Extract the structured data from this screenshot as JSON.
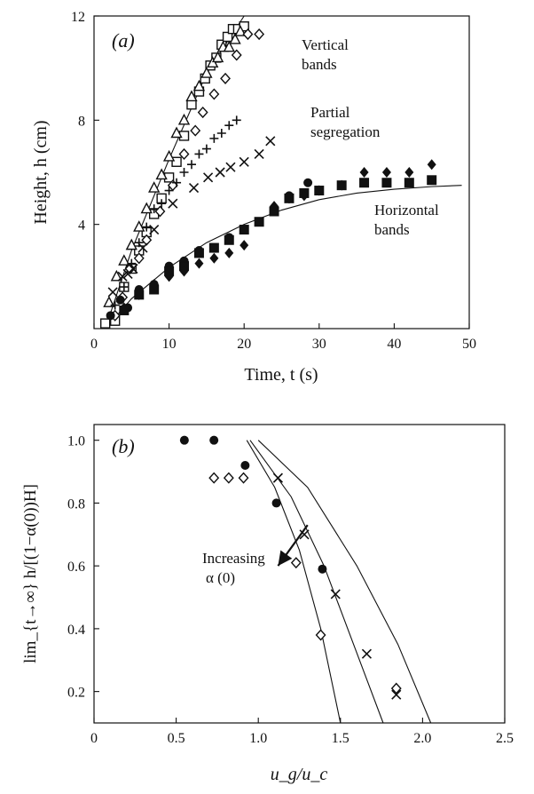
{
  "chart_data": [
    {
      "type": "scatter",
      "panel_label": "(a)",
      "xlabel": "Time, t (s)",
      "ylabel": "Height, h (cm)",
      "xlim": [
        0,
        50
      ],
      "ylim": [
        0,
        12
      ],
      "xticks": [
        0,
        10,
        20,
        30,
        40,
        50
      ],
      "yticks": [
        4,
        8,
        12
      ],
      "grid": false,
      "annotations": [
        {
          "lines": [
            "Vertical",
            "bands"
          ]
        },
        {
          "lines": [
            "Partial",
            "segregation"
          ]
        },
        {
          "lines": [
            "Horizontal",
            "bands"
          ]
        }
      ],
      "series": [
        {
          "marker": "open-square",
          "x": [
            1.5,
            2.8,
            4,
            5,
            6,
            7,
            8,
            9,
            10,
            11,
            12,
            13,
            14,
            14.8,
            15.5,
            16.3,
            17,
            17.8,
            18.5,
            19.2,
            20
          ],
          "y": [
            0.2,
            0.3,
            1.6,
            2.3,
            3,
            3.7,
            4.4,
            5,
            5.8,
            6.4,
            7.4,
            8.6,
            9.1,
            9.6,
            10.1,
            10.4,
            10.9,
            11.2,
            11.5,
            11.5,
            11.6
          ]
        },
        {
          "marker": "open-triangle",
          "x": [
            2,
            3,
            4,
            5,
            6,
            7,
            8,
            9,
            10,
            11,
            12,
            13,
            14,
            15,
            15.8,
            16.5,
            17.2,
            18,
            18.8,
            19.5
          ],
          "y": [
            1,
            2,
            2.6,
            3.2,
            3.9,
            4.6,
            5.4,
            5.9,
            6.6,
            7.5,
            8,
            8.9,
            9.3,
            9.8,
            10.2,
            10.4,
            10.8,
            10.8,
            11.1,
            11.4
          ]
        },
        {
          "marker": "open-diamond",
          "x": [
            2.8,
            3.8,
            4.8,
            6,
            7,
            8.8,
            10.5,
            12,
            13.5,
            14.5,
            16,
            17.5,
            19,
            20.5,
            22
          ],
          "y": [
            0.5,
            1.2,
            2.3,
            2.7,
            3.4,
            4.5,
            5.5,
            6.7,
            7.6,
            8.3,
            9,
            9.6,
            10.5,
            11.3,
            11.3
          ]
        },
        {
          "marker": "plus",
          "x": [
            2.8,
            4,
            5,
            6,
            7,
            8,
            9,
            10,
            11,
            12,
            13,
            14,
            15,
            16,
            17,
            18,
            19
          ],
          "y": [
            0.9,
            1.6,
            2.5,
            3.3,
            3.9,
            4.6,
            4.8,
            5.3,
            5.6,
            6,
            6.3,
            6.7,
            6.9,
            7.3,
            7.5,
            7.8,
            8
          ]
        },
        {
          "marker": "cross",
          "x": [
            2.5,
            3.8,
            4.5,
            5.2,
            6.5,
            8,
            10.5,
            13.3,
            15.2,
            16.8,
            18.2,
            20,
            22,
            23.5
          ],
          "y": [
            1.4,
            2,
            2.1,
            2.3,
            3.1,
            3.8,
            4.8,
            5.4,
            5.8,
            6,
            6.2,
            6.4,
            6.7,
            7.2
          ]
        },
        {
          "marker": "filled-circle",
          "x": [
            2.2,
            3.5,
            4.5,
            6,
            8,
            10,
            12,
            14,
            16,
            18,
            20,
            22,
            24,
            26,
            28.5
          ],
          "y": [
            0.5,
            1.1,
            0.8,
            1.5,
            1.7,
            2.4,
            2.6,
            3,
            3.1,
            3.5,
            3.8,
            4.1,
            4.6,
            5.1,
            5.6
          ]
        },
        {
          "marker": "filled-square",
          "x": [
            4,
            6,
            8,
            10,
            12,
            14,
            16,
            18,
            20,
            22,
            24,
            26,
            28,
            30,
            33,
            36,
            39,
            42,
            45
          ],
          "y": [
            0.7,
            1.3,
            1.5,
            2.2,
            2.4,
            2.9,
            3.1,
            3.4,
            3.8,
            4.1,
            4.5,
            5,
            5.2,
            5.3,
            5.5,
            5.6,
            5.6,
            5.6,
            5.7
          ]
        },
        {
          "marker": "filled-diamond",
          "x": [
            4,
            6,
            8,
            10,
            12,
            14,
            16,
            18,
            20,
            24,
            26,
            28,
            30,
            33,
            36,
            39,
            42,
            45
          ],
          "y": [
            0.8,
            1.3,
            1.7,
            2,
            2.2,
            2.5,
            2.7,
            2.9,
            3.2,
            4.7,
            5,
            5.1,
            5.3,
            5.5,
            6,
            6,
            6,
            6.3
          ]
        }
      ],
      "curves": [
        {
          "x": [
            1.5,
            5,
            10,
            15,
            20,
            22
          ],
          "y": [
            0,
            3,
            6.5,
            9.8,
            12.5,
            13.4
          ]
        },
        {
          "x": [
            1.5,
            5,
            10,
            15,
            20,
            25,
            30,
            35,
            40,
            45,
            49
          ],
          "y": [
            0,
            1.15,
            2.35,
            3.3,
            4,
            4.55,
            4.95,
            5.2,
            5.35,
            5.45,
            5.5
          ]
        }
      ]
    },
    {
      "type": "scatter",
      "panel_label": "(b)",
      "xlabel": "u_g/u_c",
      "ylabel": "lim_{t→∞} h/[(1−α(0))H]",
      "xlim": [
        0,
        2.5
      ],
      "ylim": [
        0.1,
        1.05
      ],
      "xticks": [
        0,
        0.5,
        1.0,
        1.5,
        2.0,
        2.5
      ],
      "xtick_labels": [
        "0",
        "0.5",
        "1.0",
        "1.5",
        "2.0",
        "2.5"
      ],
      "yticks": [
        0.2,
        0.4,
        0.6,
        0.8,
        1.0
      ],
      "ytick_labels": [
        "0.2",
        "0.4",
        "0.6",
        "0.8",
        "1.0"
      ],
      "grid": false,
      "annotations": [
        {
          "lines": [
            "Increasing",
            "α (0)"
          ]
        }
      ],
      "arrow": {
        "from": [
          1.3,
          0.73
        ],
        "to": [
          1.12,
          0.6
        ]
      },
      "series": [
        {
          "marker": "filled-circle",
          "x": [
            0.55,
            0.73,
            0.92,
            1.11,
            1.39
          ],
          "y": [
            1.0,
            1.0,
            0.92,
            0.8,
            0.59
          ]
        },
        {
          "marker": "open-diamond",
          "x": [
            0.73,
            0.82,
            0.91,
            1.23,
            1.38,
            1.84
          ],
          "y": [
            0.88,
            0.88,
            0.88,
            0.61,
            0.38,
            0.21
          ]
        },
        {
          "marker": "cross",
          "x": [
            1.12,
            1.28,
            1.47,
            1.66,
            1.84
          ],
          "y": [
            0.88,
            0.7,
            0.51,
            0.32,
            0.19
          ]
        }
      ],
      "curves": [
        {
          "x": [
            0.93,
            1.1,
            1.25,
            1.38,
            1.5
          ],
          "y": [
            1.0,
            0.85,
            0.65,
            0.4,
            0.1
          ]
        },
        {
          "x": [
            0.95,
            1.2,
            1.4,
            1.58,
            1.76
          ],
          "y": [
            1.0,
            0.82,
            0.6,
            0.35,
            0.1
          ]
        },
        {
          "x": [
            1.0,
            1.3,
            1.6,
            1.85,
            2.05
          ],
          "y": [
            1.0,
            0.85,
            0.6,
            0.35,
            0.1
          ]
        }
      ]
    }
  ]
}
